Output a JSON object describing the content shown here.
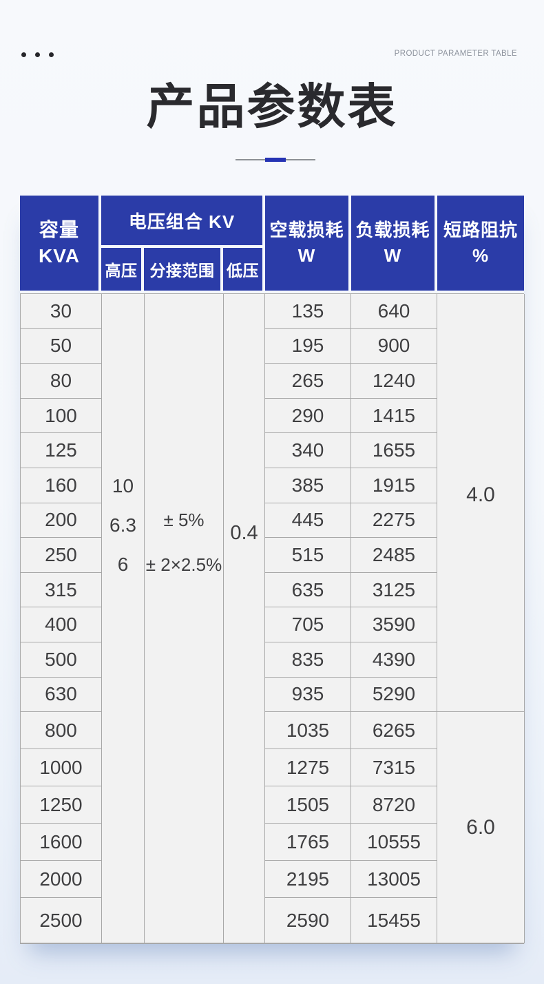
{
  "header_bar": {
    "eyebrow": "PRODUCT PARAMETER TABLE"
  },
  "title": "产品参数表",
  "table": {
    "columns": {
      "capacity_line1": "容量",
      "capacity_line2": "KVA",
      "voltage_group": "电压组合 KV",
      "high_voltage": "高压",
      "tap_range": "分接范围",
      "low_voltage": "低压",
      "no_load_loss_line1": "空载损耗",
      "no_load_loss_line2": "W",
      "load_loss_line1": "负载损耗",
      "load_loss_line2": "W",
      "impedance_line1": "短路阻抗",
      "impedance_line2": "%"
    },
    "merged": {
      "high_voltage_values": [
        "10",
        "6.3",
        "6"
      ],
      "tap_range_values": [
        "± 5%",
        "± 2×2.5%"
      ],
      "low_voltage_value": "0.4",
      "impedance_group_a": "4.0",
      "impedance_group_b": "6.0"
    },
    "group_a_row_count": 12,
    "rows": [
      {
        "kva": "30",
        "no_load": "135",
        "load": "640"
      },
      {
        "kva": "50",
        "no_load": "195",
        "load": "900"
      },
      {
        "kva": "80",
        "no_load": "265",
        "load": "1240"
      },
      {
        "kva": "100",
        "no_load": "290",
        "load": "1415"
      },
      {
        "kva": "125",
        "no_load": "340",
        "load": "1655"
      },
      {
        "kva": "160",
        "no_load": "385",
        "load": "1915"
      },
      {
        "kva": "200",
        "no_load": "445",
        "load": "2275"
      },
      {
        "kva": "250",
        "no_load": "515",
        "load": "2485"
      },
      {
        "kva": "315",
        "no_load": "635",
        "load": "3125"
      },
      {
        "kva": "400",
        "no_load": "705",
        "load": "3590"
      },
      {
        "kva": "500",
        "no_load": "835",
        "load": "4390"
      },
      {
        "kva": "630",
        "no_load": "935",
        "load": "5290"
      },
      {
        "kva": "800",
        "no_load": "1035",
        "load": "6265"
      },
      {
        "kva": "1000",
        "no_load": "1275",
        "load": "7315"
      },
      {
        "kva": "1250",
        "no_load": "1505",
        "load": "8720"
      },
      {
        "kva": "1600",
        "no_load": "1765",
        "load": "10555"
      },
      {
        "kva": "2000",
        "no_load": "2195",
        "load": "13005"
      },
      {
        "kva": "2500",
        "no_load": "2590",
        "load": "15455"
      }
    ]
  },
  "colors": {
    "header_blue": "#2B3CA8",
    "accent_blue": "#2533B4",
    "cell_bg": "#F2F2F2",
    "grid_line": "#A8A8A8",
    "title_ink": "#2A2A2E"
  }
}
